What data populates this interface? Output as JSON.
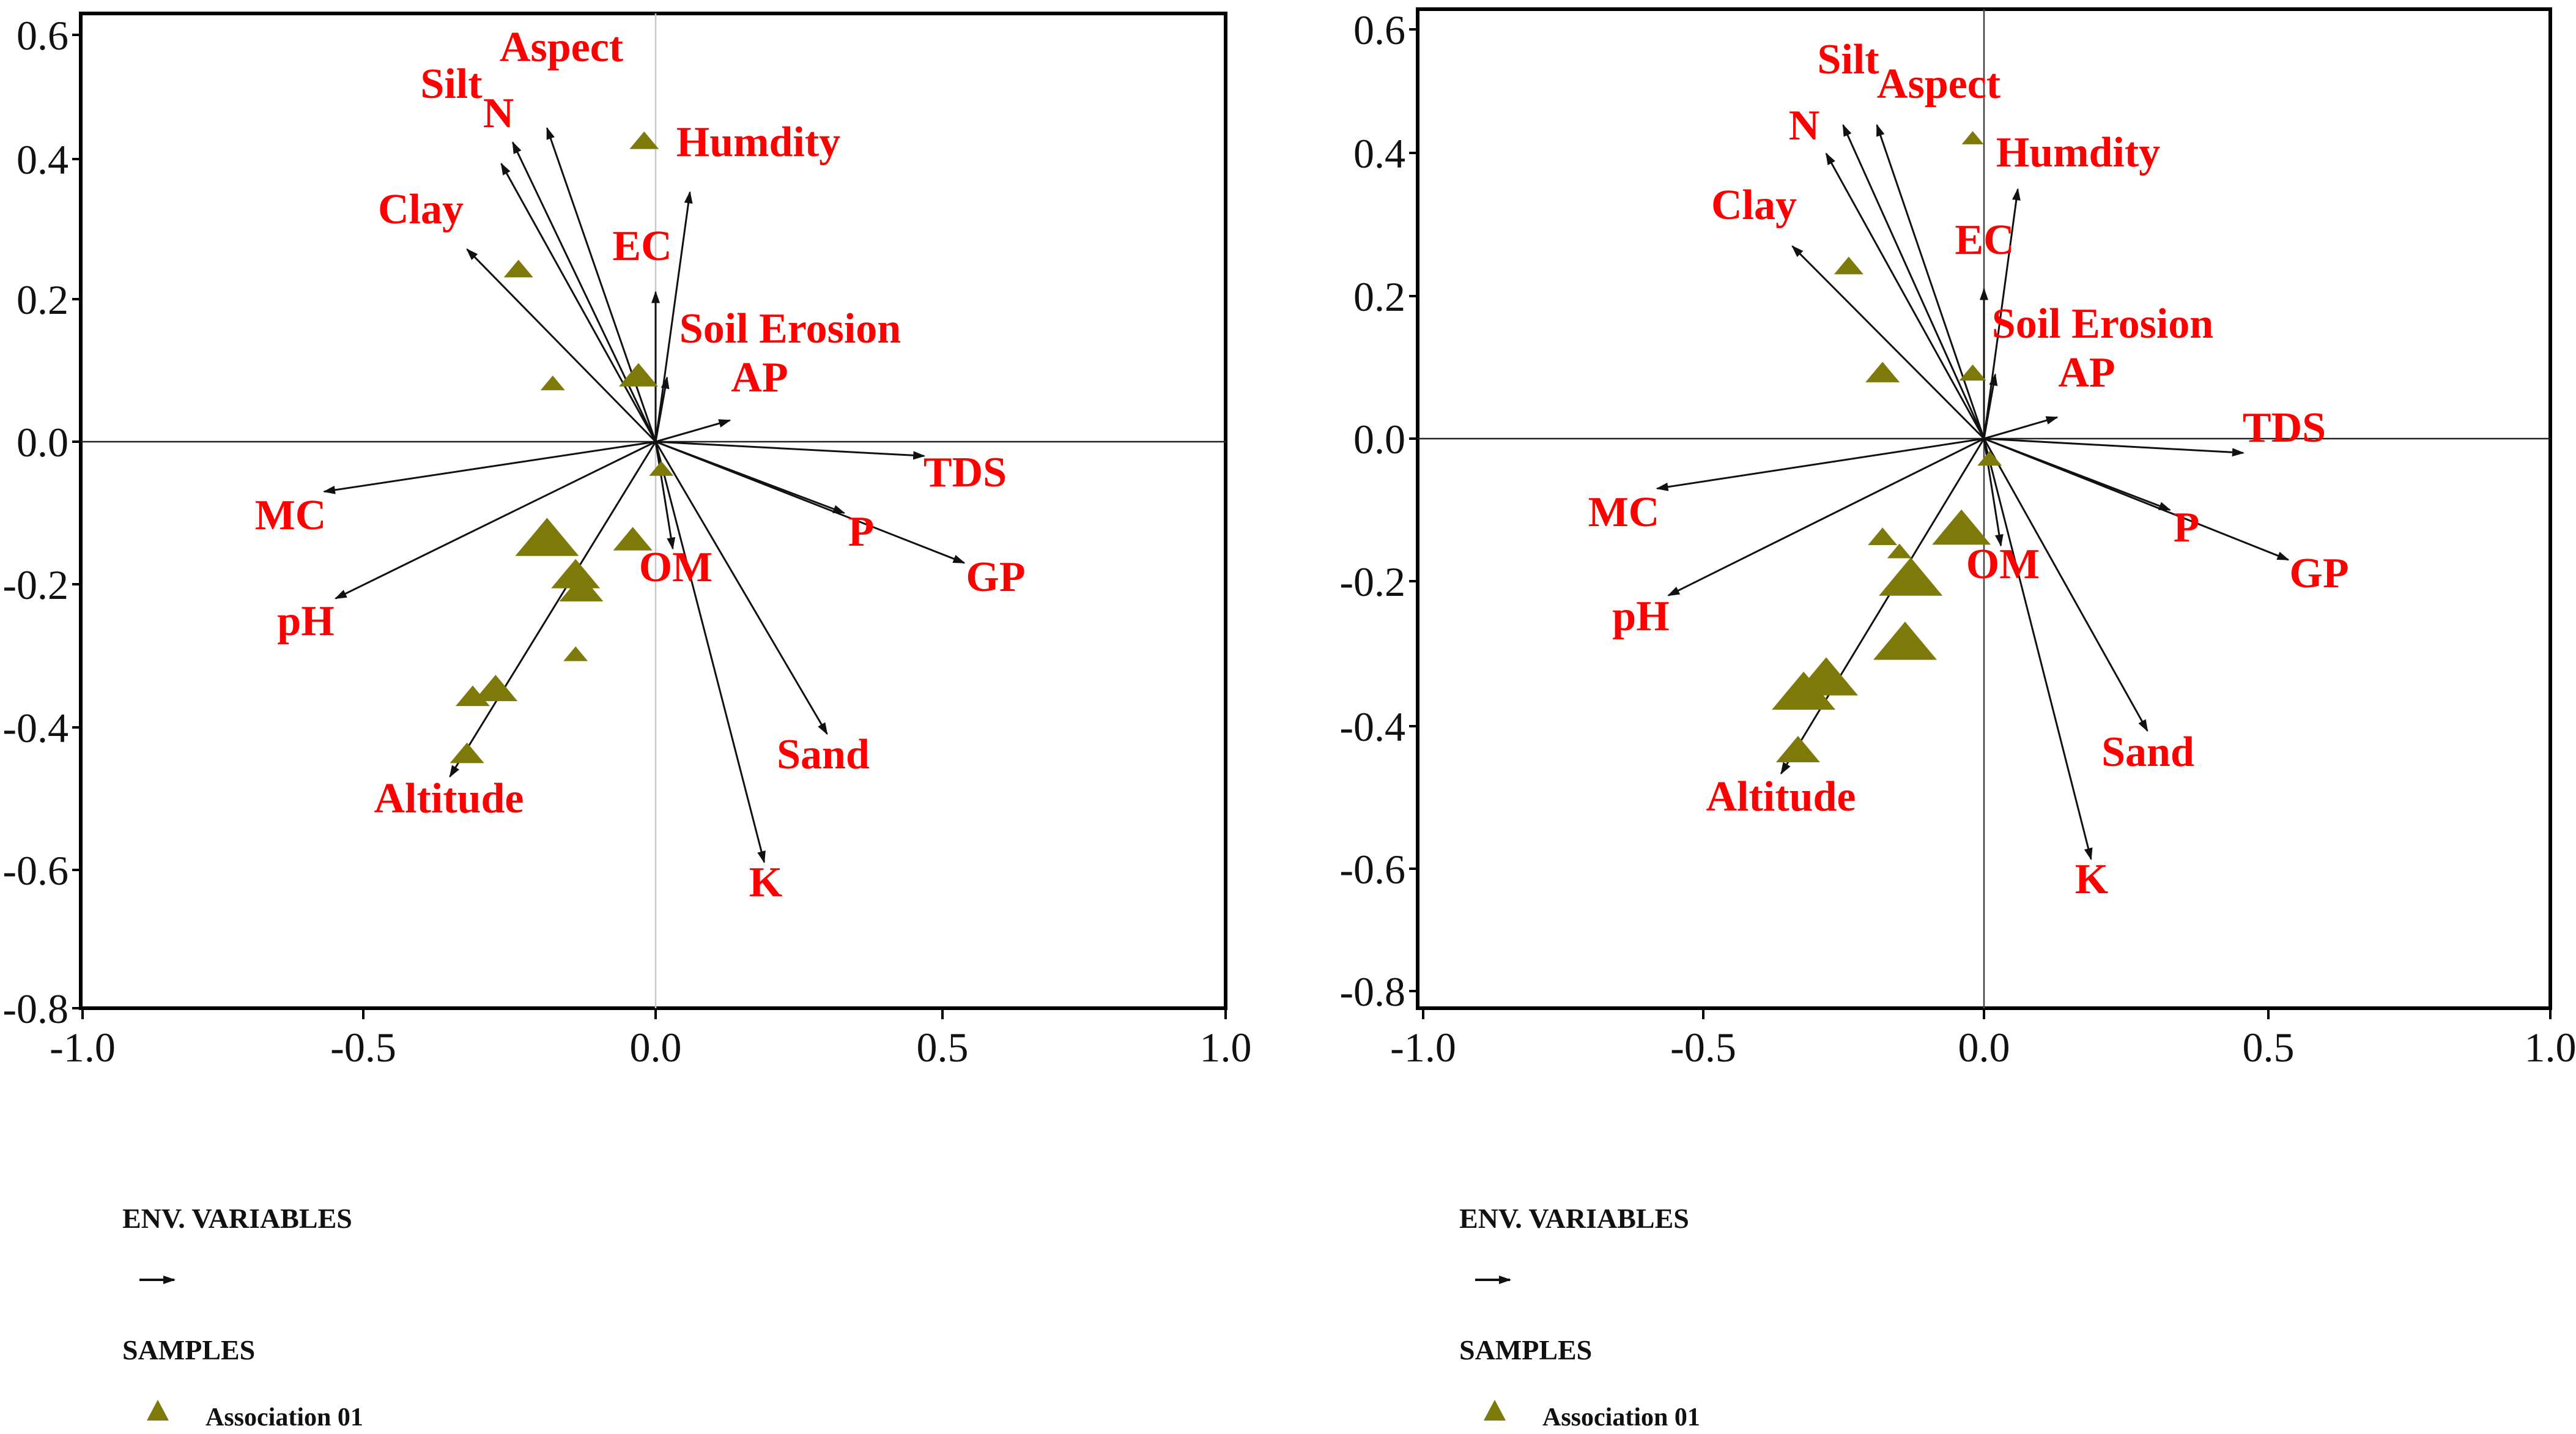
{
  "chart_data": [
    {
      "type": "scatter",
      "subtype": "biplot",
      "title": "",
      "xlabel": "",
      "ylabel": "",
      "xlim": [
        -1.0,
        1.0
      ],
      "ylim": [
        -0.8,
        0.6
      ],
      "x_ticks": [
        "-1.0",
        "-0.5",
        "0.0",
        "0.5",
        "1.0"
      ],
      "y_ticks": [
        "0.6",
        "0.4",
        "0.2",
        "0.0",
        "-0.2",
        "-0.4",
        "-0.6",
        "-0.8"
      ],
      "axis_line_color": "#c8c8c8",
      "env_variables": [
        {
          "name": "Aspect",
          "x": -0.19,
          "y": 0.44
        },
        {
          "name": "Silt",
          "x": -0.25,
          "y": 0.42
        },
        {
          "name": "N",
          "x": -0.27,
          "y": 0.39
        },
        {
          "name": "Humdity",
          "x": 0.06,
          "y": 0.35
        },
        {
          "name": "Clay",
          "x": -0.33,
          "y": 0.27
        },
        {
          "name": "EC",
          "x": 0.0,
          "y": 0.21
        },
        {
          "name": "Soil Erosion",
          "x": 0.02,
          "y": 0.09
        },
        {
          "name": "AP",
          "x": 0.13,
          "y": 0.03
        },
        {
          "name": "TDS",
          "x": 0.47,
          "y": -0.02
        },
        {
          "name": "P",
          "x": 0.33,
          "y": -0.1
        },
        {
          "name": "GP",
          "x": 0.54,
          "y": -0.17
        },
        {
          "name": "MC",
          "x": -0.58,
          "y": -0.07
        },
        {
          "name": "pH",
          "x": -0.56,
          "y": -0.22
        },
        {
          "name": "OM",
          "x": 0.03,
          "y": -0.15
        },
        {
          "name": "Sand",
          "x": 0.3,
          "y": -0.41
        },
        {
          "name": "K",
          "x": 0.19,
          "y": -0.59
        },
        {
          "name": "Altitude",
          "x": -0.36,
          "y": -0.47
        }
      ],
      "samples": [
        {
          "x": -0.02,
          "y": 0.42,
          "size": 1.2
        },
        {
          "x": -0.24,
          "y": 0.24,
          "size": 1.2
        },
        {
          "x": -0.18,
          "y": 0.08,
          "size": 1.0
        },
        {
          "x": -0.03,
          "y": 0.09,
          "size": 1.6
        },
        {
          "x": 0.01,
          "y": -0.04,
          "size": 1.0
        },
        {
          "x": -0.19,
          "y": -0.14,
          "size": 2.6
        },
        {
          "x": -0.14,
          "y": -0.19,
          "size": 2.0
        },
        {
          "x": -0.13,
          "y": -0.21,
          "size": 1.8
        },
        {
          "x": -0.04,
          "y": -0.14,
          "size": 1.6
        },
        {
          "x": -0.14,
          "y": -0.3,
          "size": 1.0
        },
        {
          "x": -0.28,
          "y": -0.35,
          "size": 1.8
        },
        {
          "x": -0.32,
          "y": -0.36,
          "size": 1.4
        },
        {
          "x": -0.33,
          "y": -0.44,
          "size": 1.4
        }
      ]
    },
    {
      "type": "scatter",
      "subtype": "biplot",
      "title": "",
      "xlabel": "",
      "ylabel": "",
      "xlim": [
        -1.0,
        1.0
      ],
      "ylim": [
        -0.8,
        0.6
      ],
      "x_ticks": [
        "-1.0",
        "-0.5",
        "0.0",
        "0.5",
        "1.0"
      ],
      "y_ticks": [
        "0.6",
        "0.4",
        "0.2",
        "0.0",
        "-0.2",
        "-0.4",
        "-0.6",
        "-0.8"
      ],
      "axis_line_color": "#444444",
      "env_variables": [
        {
          "name": "Aspect",
          "x": -0.19,
          "y": 0.44
        },
        {
          "name": "Silt",
          "x": -0.25,
          "y": 0.44
        },
        {
          "name": "N",
          "x": -0.28,
          "y": 0.4
        },
        {
          "name": "Humdity",
          "x": 0.06,
          "y": 0.35
        },
        {
          "name": "Clay",
          "x": -0.34,
          "y": 0.27
        },
        {
          "name": "EC",
          "x": 0.0,
          "y": 0.21
        },
        {
          "name": "Soil Erosion",
          "x": 0.02,
          "y": 0.09
        },
        {
          "name": "AP",
          "x": 0.13,
          "y": 0.03
        },
        {
          "name": "TDS",
          "x": 0.46,
          "y": -0.02
        },
        {
          "name": "P",
          "x": 0.33,
          "y": -0.1
        },
        {
          "name": "GP",
          "x": 0.54,
          "y": -0.17
        },
        {
          "name": "MC",
          "x": -0.58,
          "y": -0.07
        },
        {
          "name": "pH",
          "x": -0.56,
          "y": -0.22
        },
        {
          "name": "OM",
          "x": 0.03,
          "y": -0.15
        },
        {
          "name": "Sand",
          "x": 0.29,
          "y": -0.41
        },
        {
          "name": "K",
          "x": 0.19,
          "y": -0.59
        },
        {
          "name": "Altitude",
          "x": -0.36,
          "y": -0.47
        }
      ],
      "samples": [
        {
          "x": -0.02,
          "y": 0.42,
          "size": 0.9
        },
        {
          "x": -0.24,
          "y": 0.24,
          "size": 1.2
        },
        {
          "x": -0.18,
          "y": 0.09,
          "size": 1.4
        },
        {
          "x": -0.02,
          "y": 0.09,
          "size": 1.1
        },
        {
          "x": 0.01,
          "y": -0.03,
          "size": 1.0
        },
        {
          "x": -0.18,
          "y": -0.14,
          "size": 1.2
        },
        {
          "x": -0.15,
          "y": -0.16,
          "size": 1.0
        },
        {
          "x": -0.04,
          "y": -0.13,
          "size": 2.4
        },
        {
          "x": -0.13,
          "y": -0.2,
          "size": 2.6
        },
        {
          "x": -0.14,
          "y": -0.29,
          "size": 2.6
        },
        {
          "x": -0.28,
          "y": -0.34,
          "size": 2.6
        },
        {
          "x": -0.32,
          "y": -0.36,
          "size": 2.6
        },
        {
          "x": -0.33,
          "y": -0.44,
          "size": 1.8
        }
      ]
    }
  ],
  "legend": {
    "env_title": "ENV. VARIABLES",
    "samples_title": "SAMPLES",
    "sample_label": "Association 01"
  },
  "colors": {
    "label": "#ff0000",
    "marker": "#7d7a0a",
    "arrow": "#111111",
    "frame": "#000000"
  }
}
